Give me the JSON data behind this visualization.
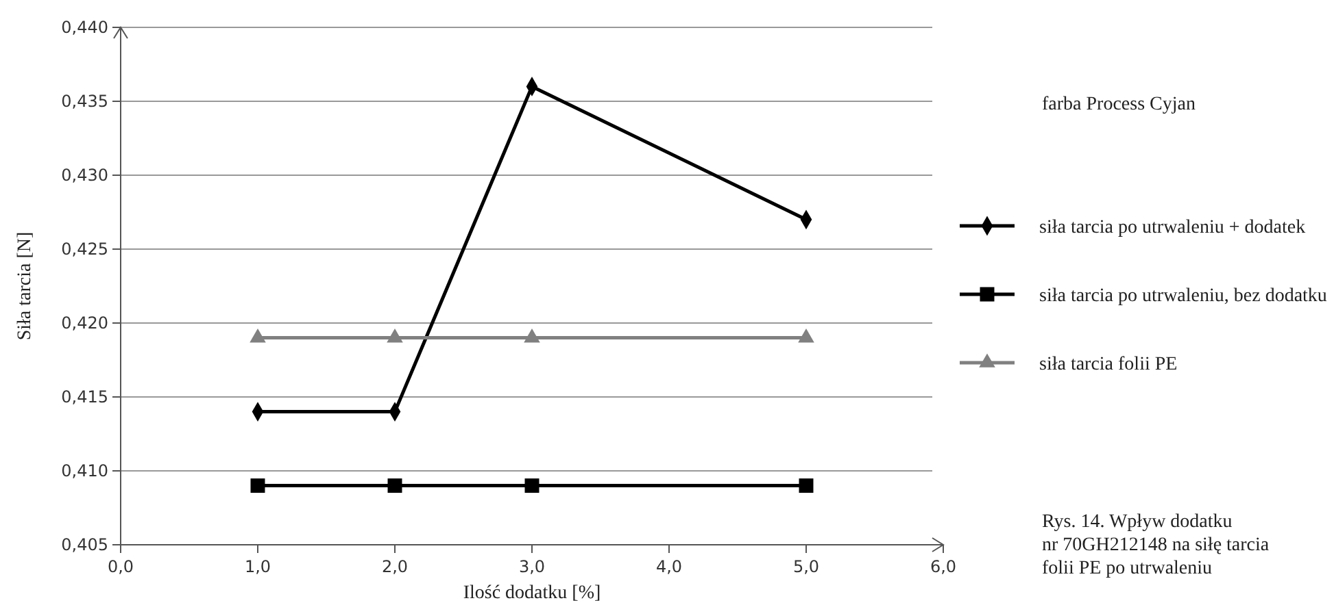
{
  "chart_data": {
    "type": "line",
    "xlabel": "Ilość dodatku [%]",
    "ylabel": "Siła tarcia [N]",
    "legend_title": "farba Process Cyjan",
    "x": [
      1,
      2,
      3,
      5
    ],
    "series": [
      {
        "name": "siła tarcia po utrwaleniu + dodatek",
        "color": "#000000",
        "marker": "diamond",
        "values": [
          0.414,
          0.414,
          0.436,
          0.427
        ]
      },
      {
        "name": "siła tarcia po utrwaleniu, bez dodatku",
        "color": "#000000",
        "marker": "square",
        "values": [
          0.409,
          0.409,
          0.409,
          0.409
        ]
      },
      {
        "name": "siła tarcia folii PE",
        "color": "#808080",
        "marker": "triangle",
        "values": [
          0.419,
          0.419,
          0.419,
          0.419
        ]
      }
    ],
    "xlim": [
      0,
      6
    ],
    "ylim": [
      0.405,
      0.44
    ],
    "xticks": [
      {
        "value": 0,
        "label": "0,0"
      },
      {
        "value": 1,
        "label": "1,0"
      },
      {
        "value": 2,
        "label": "2,0"
      },
      {
        "value": 3,
        "label": "3,0"
      },
      {
        "value": 4,
        "label": "4,0"
      },
      {
        "value": 5,
        "label": "5,0"
      },
      {
        "value": 6,
        "label": "6,0"
      }
    ],
    "yticks": [
      {
        "value": 0.405,
        "label": "0,405"
      },
      {
        "value": 0.41,
        "label": "0,410"
      },
      {
        "value": 0.415,
        "label": "0,415"
      },
      {
        "value": 0.42,
        "label": "0,420"
      },
      {
        "value": 0.425,
        "label": "0,425"
      },
      {
        "value": 0.43,
        "label": "0,430"
      },
      {
        "value": 0.435,
        "label": "0,435"
      },
      {
        "value": 0.44,
        "label": "0,440"
      }
    ],
    "grid": "y",
    "legend": "right",
    "line_style": "solid",
    "annotations": [
      "Rys. 14. Wpływ dodatku\nnr 70GH212148 na siłę tarcia\nfolii PE po utrwaleniu"
    ]
  }
}
